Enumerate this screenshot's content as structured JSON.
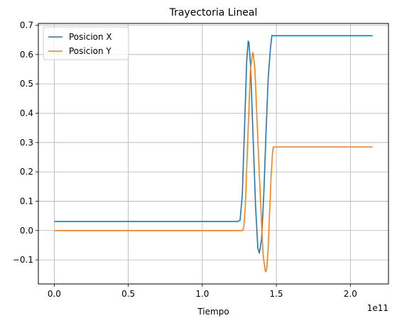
{
  "chart_data": {
    "type": "line",
    "title": "Trayectoria Lineal",
    "xlabel": "Tiempo",
    "ylabel": "",
    "x_offset_text": "1e11",
    "x_scale": 100000000000,
    "xlim": [
      -0.1075,
      2.2575
    ],
    "ylim": [
      -0.182,
      0.706
    ],
    "x_ticks": [
      0.0,
      0.5,
      1.0,
      1.5,
      2.0
    ],
    "x_tick_labels": [
      "0.0",
      "0.5",
      "1.0",
      "1.5",
      "2.0"
    ],
    "y_ticks": [
      -0.1,
      0.0,
      0.1,
      0.2,
      0.3,
      0.4,
      0.5,
      0.6,
      0.7
    ],
    "y_tick_labels": [
      "−0.1",
      "0.0",
      "0.1",
      "0.2",
      "0.3",
      "0.4",
      "0.5",
      "0.6",
      "0.7"
    ],
    "grid": true,
    "legend_position": "top-left",
    "series": [
      {
        "name": "Posicion X",
        "color": "#1f77b4",
        "x": [
          0.0,
          1.24,
          1.255,
          1.27,
          1.285,
          1.3,
          1.31,
          1.315,
          1.325,
          1.34,
          1.36,
          1.375,
          1.385,
          1.4,
          1.415,
          1.43,
          1.445,
          1.46,
          1.47,
          1.48,
          1.5,
          2.15
        ],
        "y": [
          0.031,
          0.031,
          0.035,
          0.12,
          0.35,
          0.58,
          0.646,
          0.64,
          0.57,
          0.36,
          0.08,
          -0.06,
          -0.077,
          -0.03,
          0.12,
          0.33,
          0.52,
          0.62,
          0.665,
          0.664,
          0.664,
          0.664
        ]
      },
      {
        "name": "Posicion Y",
        "color": "#ff7f0e",
        "x": [
          0.0,
          1.27,
          1.28,
          1.29,
          1.31,
          1.325,
          1.34,
          1.345,
          1.355,
          1.37,
          1.38,
          1.395,
          1.41,
          1.425,
          1.43,
          1.435,
          1.445,
          1.455,
          1.465,
          1.475,
          1.48,
          1.5,
          2.15
        ],
        "y": [
          0.0,
          0.0,
          0.01,
          0.08,
          0.35,
          0.55,
          0.607,
          0.6,
          0.55,
          0.37,
          0.25,
          0.08,
          -0.08,
          -0.138,
          -0.14,
          -0.13,
          -0.06,
          0.07,
          0.19,
          0.27,
          0.285,
          0.285,
          0.285
        ]
      }
    ]
  }
}
